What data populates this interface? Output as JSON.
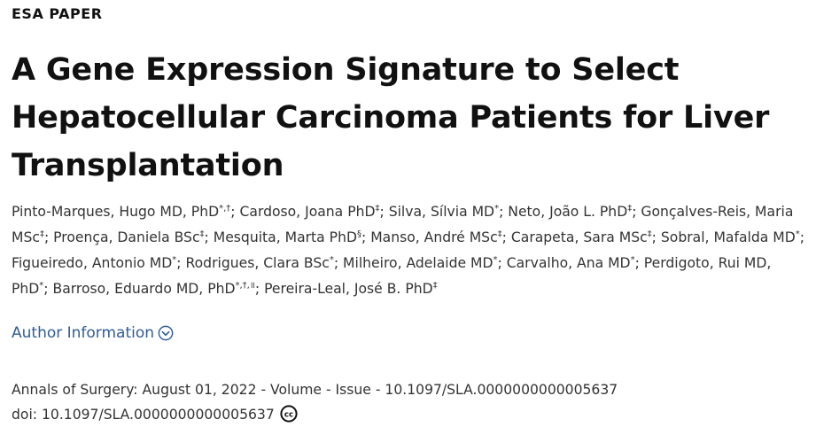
{
  "section_label": "ESA PAPER",
  "title": "A Gene Expression Signature to Select Hepatocellular Carcinoma Patients for Liver Transplantation",
  "authors": [
    {
      "name": "Pinto-Marques, Hugo MD, PhD",
      "marks": "*,†"
    },
    {
      "name": "Cardoso, Joana PhD",
      "marks": "‡"
    },
    {
      "name": "Silva, Sílvia MD",
      "marks": "*"
    },
    {
      "name": "Neto, João L. PhD",
      "marks": "‡"
    },
    {
      "name": "Gonçalves-Reis, Maria MSc",
      "marks": "‡"
    },
    {
      "name": "Proença, Daniela BSc",
      "marks": "‡"
    },
    {
      "name": "Mesquita, Marta PhD",
      "marks": "§"
    },
    {
      "name": "Manso, André MSc",
      "marks": "‡"
    },
    {
      "name": "Carapeta, Sara MSc",
      "marks": "‡"
    },
    {
      "name": "Sobral, Mafalda MD",
      "marks": "*"
    },
    {
      "name": "Figueiredo, Antonio MD",
      "marks": "*"
    },
    {
      "name": "Rodrigues, Clara BSc",
      "marks": "*"
    },
    {
      "name": "Milheiro, Adelaide MD",
      "marks": "*"
    },
    {
      "name": "Carvalho, Ana MD",
      "marks": "*"
    },
    {
      "name": "Perdigoto, Rui MD, PhD",
      "marks": "*"
    },
    {
      "name": "Barroso, Eduardo MD, PhD",
      "marks": "*,†,॥"
    },
    {
      "name": "Pereira-Leal, José B. PhD",
      "marks": "‡"
    }
  ],
  "author_info_link": "Author Information",
  "citation": {
    "journal_line": "Annals of Surgery: August 01, 2022 - Volume - Issue - 10.1097/SLA.0000000000005637",
    "doi_line": "doi: 10.1097/SLA.0000000000005637"
  },
  "colors": {
    "link": "#2f5d9a",
    "title": "#111111",
    "body_text": "#333333"
  },
  "icons": {
    "author_info": "chevron-down-circle-icon",
    "license": "creative-commons-icon"
  }
}
